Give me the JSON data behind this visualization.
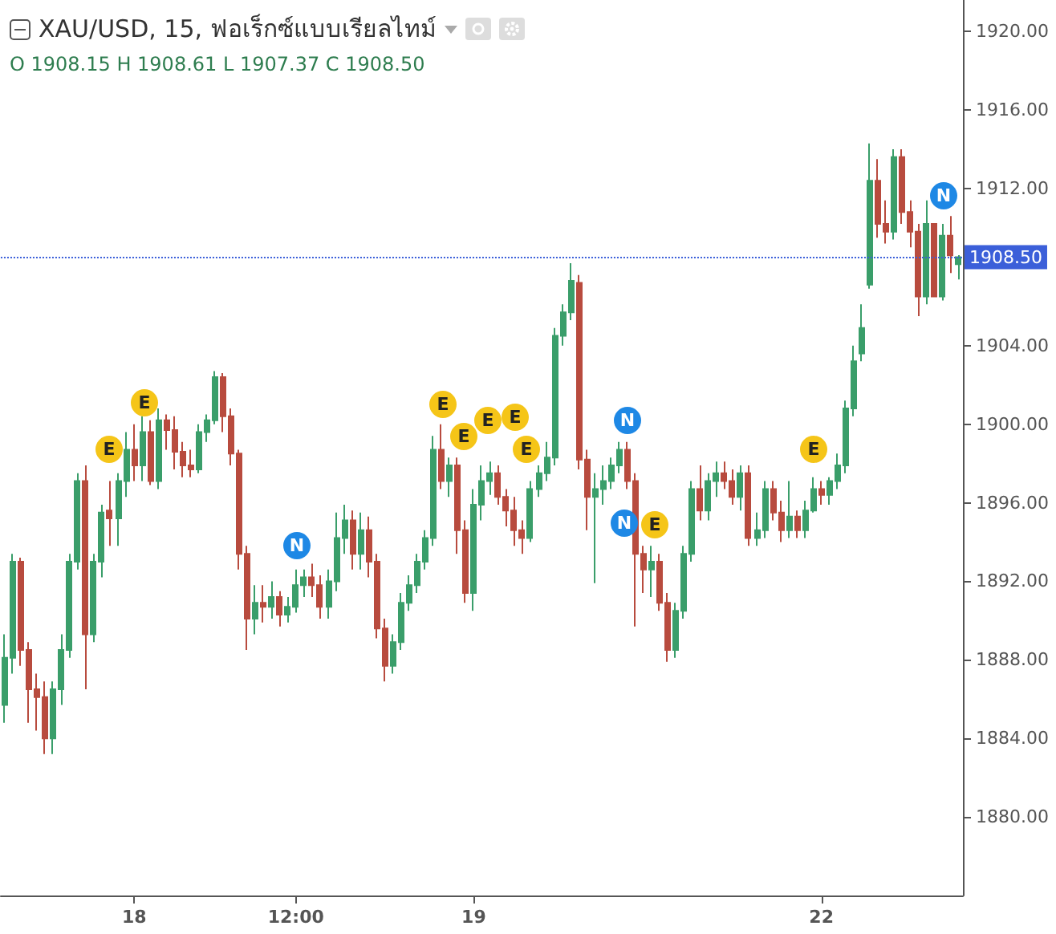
{
  "chart_data": {
    "type": "candlestick",
    "title": "XAU/USD, 15, ฟอเร็กซ์แบบเรียลไทม์",
    "subtitle": "O 1908.15 H 1908.61 L 1907.37 C 1908.50",
    "colors": [
      "#3a9e6a",
      "#3a9e6a",
      "#b84b3e",
      "#b84b3e",
      "#b84b3e",
      "#b84b3e",
      "#3a9e6a",
      "#3a9e6a",
      "#3a9e6a",
      "#3a9e6a",
      "#b84b3e",
      "#3a9e6a",
      "#3a9e6a",
      "#b84b3e",
      "#3a9e6a",
      "#3a9e6a",
      "#b84b3e",
      "#3a9e6a",
      "#b84b3e",
      "#3a9e6a",
      "#b84b3e",
      "#b84b3e",
      "#b84b3e",
      "#b84b3e",
      "#3a9e6a",
      "#3a9e6a",
      "#3a9e6a",
      "#b84b3e",
      "#b84b3e",
      "#b84b3e",
      "#b84b3e",
      "#3a9e6a",
      "#b84b3e",
      "#3a9e6a",
      "#b84b3e",
      "#3a9e6a",
      "#3a9e6a",
      "#3a9e6a",
      "#b84b3e",
      "#b84b3e",
      "#3a9e6a",
      "#3a9e6a",
      "#3a9e6a",
      "#b84b3e",
      "#3a9e6a",
      "#b84b3e",
      "#b84b3e",
      "#b84b3e",
      "#3a9e6a",
      "#3a9e6a",
      "#3a9e6a",
      "#3a9e6a",
      "#3a9e6a",
      "#3a9e6a",
      "#b84b3e",
      "#3a9e6a",
      "#b84b3e",
      "#b84b3e",
      "#3a9e6a",
      "#3a9e6a",
      "#3a9e6a",
      "#b84b3e",
      "#b84b3e",
      "#b84b3e",
      "#b84b3e",
      "#3a9e6a",
      "#3a9e6a",
      "#3a9e6a",
      "#3a9e6a",
      "#3a9e6a",
      "#3a9e6a",
      "#b84b3e",
      "#b84b3e",
      "#3a9e6a",
      "#3a9e6a",
      "#3a9e6a",
      "#3a9e6a",
      "#b84b3e",
      "#b84b3e",
      "#b84b3e",
      "#3a9e6a",
      "#b84b3e",
      "#b84b3e",
      "#3a9e6a",
      "#3a9e6a",
      "#3a9e6a",
      "#b84b3e",
      "#3a9e6a",
      "#3a9e6a",
      "#b84b3e",
      "#b84b3e",
      "#3a9e6a",
      "#b84b3e",
      "#3a9e6a",
      "#3a9e6a",
      "#b84b3e",
      "#b84b3e",
      "#3a9e6a",
      "#b84b3e",
      "#3a9e6a",
      "#3a9e6a",
      "#b84b3e",
      "#3a9e6a",
      "#3a9e6a",
      "#3a9e6a",
      "#3a9e6a",
      "#3a9e6a",
      "#3a9e6a",
      "#b84b3e",
      "#b84b3e",
      "#3a9e6a",
      "#b84b3e",
      "#b84b3e",
      "#b84b3e",
      "#3a9e6a",
      "#b84b3e",
      "#3a9e6a",
      "#b84b3e",
      "#3a9e6a"
    ],
    "categories": [
      null,
      null,
      null,
      null,
      null,
      null,
      null,
      null,
      null,
      null,
      null,
      null,
      null,
      null,
      null,
      null,
      "18",
      null,
      null,
      null,
      null,
      null,
      null,
      null,
      null,
      null,
      null,
      null,
      null,
      null,
      null,
      null,
      null,
      null,
      null,
      null,
      "12:00",
      null,
      null,
      null,
      null,
      null,
      null,
      null,
      null,
      null,
      null,
      null,
      null,
      null,
      null,
      null,
      null,
      null,
      null,
      null,
      null,
      null,
      "19",
      null,
      null,
      null,
      null,
      null,
      null,
      null,
      null,
      null,
      null,
      null,
      null,
      null,
      null,
      null,
      null,
      null,
      null,
      null,
      null,
      null,
      null,
      null,
      null,
      null,
      null,
      null,
      null,
      null,
      null,
      null,
      null,
      null,
      null,
      null,
      null,
      null,
      null,
      null,
      null,
      null,
      null,
      "22",
      null,
      null,
      null,
      null,
      null,
      null,
      null,
      null,
      null,
      null,
      null,
      null,
      null,
      null,
      null,
      null,
      null
    ],
    "ohlc": [
      [
        1885.7,
        1889.3,
        1884.8,
        1888.1
      ],
      [
        1888.1,
        1893.4,
        1887.3,
        1893.0
      ],
      [
        1893.0,
        1893.2,
        1887.7,
        1888.5
      ],
      [
        1888.5,
        1888.9,
        1884.8,
        1886.5
      ],
      [
        1886.5,
        1887.3,
        1884.4,
        1886.1
      ],
      [
        1886.1,
        1886.9,
        1883.2,
        1884.0
      ],
      [
        1884.0,
        1886.9,
        1883.2,
        1886.5
      ],
      [
        1886.5,
        1889.3,
        1885.7,
        1888.5
      ],
      [
        1888.5,
        1893.4,
        1888.1,
        1893.0
      ],
      [
        1893.0,
        1897.5,
        1892.6,
        1897.1
      ],
      [
        1897.1,
        1897.9,
        1886.5,
        1889.3
      ],
      [
        1889.3,
        1893.4,
        1888.9,
        1893.0
      ],
      [
        1893.0,
        1895.9,
        1892.2,
        1895.5
      ],
      [
        1895.6,
        1897.1,
        1893.8,
        1895.2
      ],
      [
        1895.2,
        1897.5,
        1893.8,
        1897.1
      ],
      [
        1897.1,
        1899.6,
        1896.3,
        1898.7
      ],
      [
        1898.7,
        1900.0,
        1897.1,
        1897.9
      ],
      [
        1897.9,
        1900.4,
        1897.1,
        1899.6
      ],
      [
        1899.6,
        1900.2,
        1896.9,
        1897.1
      ],
      [
        1897.1,
        1900.8,
        1896.7,
        1900.2
      ],
      [
        1900.2,
        1900.5,
        1898.7,
        1899.7
      ],
      [
        1899.7,
        1900.4,
        1897.7,
        1898.6
      ],
      [
        1898.6,
        1899.1,
        1897.3,
        1897.9
      ],
      [
        1897.9,
        1898.7,
        1897.3,
        1897.7
      ],
      [
        1897.7,
        1900.0,
        1897.5,
        1899.6
      ],
      [
        1899.6,
        1900.5,
        1899.1,
        1900.2
      ],
      [
        1900.2,
        1902.7,
        1900.0,
        1902.4
      ],
      [
        1902.4,
        1902.6,
        1899.6,
        1900.4
      ],
      [
        1900.4,
        1900.8,
        1897.9,
        1898.5
      ],
      [
        1898.5,
        1898.7,
        1892.6,
        1893.4
      ],
      [
        1893.4,
        1893.8,
        1888.5,
        1890.1
      ],
      [
        1890.1,
        1891.8,
        1889.3,
        1890.9
      ],
      [
        1890.9,
        1891.8,
        1889.9,
        1890.7
      ],
      [
        1890.7,
        1892.0,
        1890.1,
        1891.2
      ],
      [
        1891.2,
        1891.5,
        1889.7,
        1890.3
      ],
      [
        1890.3,
        1891.2,
        1889.9,
        1890.7
      ],
      [
        1890.7,
        1892.6,
        1890.4,
        1891.8
      ],
      [
        1891.8,
        1892.6,
        1891.2,
        1892.2
      ],
      [
        1892.2,
        1892.9,
        1891.2,
        1891.8
      ],
      [
        1891.8,
        1892.3,
        1890.1,
        1890.7
      ],
      [
        1890.7,
        1892.6,
        1890.1,
        1892.0
      ],
      [
        1892.0,
        1895.5,
        1891.5,
        1894.2
      ],
      [
        1894.2,
        1895.9,
        1893.4,
        1895.1
      ],
      [
        1895.1,
        1895.6,
        1892.6,
        1893.4
      ],
      [
        1893.4,
        1895.5,
        1892.6,
        1894.6
      ],
      [
        1894.6,
        1895.3,
        1892.2,
        1893.0
      ],
      [
        1893.0,
        1893.4,
        1889.1,
        1889.6
      ],
      [
        1889.6,
        1890.1,
        1886.9,
        1887.7
      ],
      [
        1887.7,
        1889.3,
        1887.3,
        1888.9
      ],
      [
        1888.9,
        1891.4,
        1888.5,
        1890.9
      ],
      [
        1890.9,
        1892.3,
        1890.5,
        1891.8
      ],
      [
        1891.8,
        1893.4,
        1891.4,
        1893.0
      ],
      [
        1893.0,
        1894.6,
        1892.6,
        1894.2
      ],
      [
        1894.2,
        1899.4,
        1893.8,
        1898.7
      ],
      [
        1898.7,
        1900.0,
        1896.7,
        1897.1
      ],
      [
        1897.1,
        1898.3,
        1896.3,
        1897.9
      ],
      [
        1897.9,
        1898.3,
        1893.4,
        1894.6
      ],
      [
        1894.6,
        1895.1,
        1890.9,
        1891.4
      ],
      [
        1891.4,
        1896.7,
        1890.5,
        1895.9
      ],
      [
        1895.9,
        1897.9,
        1895.1,
        1897.1
      ],
      [
        1897.1,
        1898.1,
        1896.4,
        1897.5
      ],
      [
        1897.5,
        1897.9,
        1895.9,
        1896.3
      ],
      [
        1896.3,
        1896.7,
        1894.8,
        1895.6
      ],
      [
        1895.6,
        1896.3,
        1893.8,
        1894.6
      ],
      [
        1894.6,
        1895.1,
        1893.4,
        1894.2
      ],
      [
        1894.2,
        1897.1,
        1894.0,
        1896.7
      ],
      [
        1896.7,
        1897.9,
        1896.3,
        1897.5
      ],
      [
        1897.5,
        1899.1,
        1897.1,
        1898.3
      ],
      [
        1898.3,
        1904.9,
        1897.9,
        1904.5
      ],
      [
        1904.5,
        1906.1,
        1904.0,
        1905.7
      ],
      [
        1905.7,
        1908.2,
        1905.3,
        1907.3
      ],
      [
        1907.2,
        1907.6,
        1897.7,
        1898.2
      ],
      [
        1898.2,
        1898.7,
        1894.6,
        1896.3
      ],
      [
        1896.3,
        1897.5,
        1891.9,
        1896.7
      ],
      [
        1896.7,
        1897.9,
        1895.9,
        1897.1
      ],
      [
        1897.1,
        1898.3,
        1896.7,
        1897.9
      ],
      [
        1897.9,
        1899.1,
        1897.5,
        1898.7
      ],
      [
        1898.7,
        1899.1,
        1896.7,
        1897.1
      ],
      [
        1897.1,
        1897.5,
        1889.7,
        1893.4
      ],
      [
        1893.4,
        1893.8,
        1891.4,
        1892.6
      ],
      [
        1892.6,
        1893.8,
        1891.2,
        1893.0
      ],
      [
        1893.0,
        1893.4,
        1890.5,
        1890.9
      ],
      [
        1890.9,
        1891.4,
        1887.9,
        1888.5
      ],
      [
        1888.5,
        1890.9,
        1888.1,
        1890.5
      ],
      [
        1890.5,
        1893.8,
        1890.1,
        1893.4
      ],
      [
        1893.4,
        1897.1,
        1893.0,
        1896.7
      ],
      [
        1896.7,
        1897.9,
        1895.1,
        1895.6
      ],
      [
        1895.6,
        1897.5,
        1895.1,
        1897.1
      ],
      [
        1897.1,
        1898.1,
        1896.3,
        1897.5
      ],
      [
        1897.5,
        1898.1,
        1896.7,
        1897.1
      ],
      [
        1897.1,
        1897.7,
        1895.9,
        1896.3
      ],
      [
        1896.3,
        1897.9,
        1895.6,
        1897.5
      ],
      [
        1897.5,
        1897.9,
        1893.8,
        1894.2
      ],
      [
        1894.2,
        1895.5,
        1893.8,
        1894.6
      ],
      [
        1894.6,
        1897.1,
        1894.2,
        1896.7
      ],
      [
        1896.7,
        1897.1,
        1895.1,
        1895.5
      ],
      [
        1895.5,
        1896.1,
        1894.0,
        1894.6
      ],
      [
        1894.6,
        1897.1,
        1894.2,
        1895.3
      ],
      [
        1895.3,
        1895.6,
        1894.2,
        1894.6
      ],
      [
        1894.6,
        1896.1,
        1894.2,
        1895.6
      ],
      [
        1895.6,
        1897.3,
        1895.5,
        1896.7
      ],
      [
        1896.7,
        1897.1,
        1895.9,
        1896.4
      ],
      [
        1896.4,
        1897.3,
        1895.9,
        1897.1
      ],
      [
        1897.1,
        1898.5,
        1896.7,
        1897.9
      ],
      [
        1897.9,
        1901.2,
        1897.5,
        1900.8
      ],
      [
        1900.8,
        1904.0,
        1900.4,
        1903.2
      ],
      [
        1903.6,
        1906.1,
        1903.2,
        1904.9
      ],
      [
        1907.1,
        1914.3,
        1906.9,
        1912.4
      ],
      [
        1912.4,
        1913.5,
        1909.5,
        1910.2
      ],
      [
        1910.2,
        1911.4,
        1909.2,
        1909.8
      ],
      [
        1909.8,
        1914.0,
        1909.4,
        1913.6
      ],
      [
        1913.6,
        1914.0,
        1910.2,
        1910.8
      ],
      [
        1910.8,
        1911.4,
        1909.0,
        1909.8
      ],
      [
        1909.8,
        1910.2,
        1905.5,
        1906.5
      ],
      [
        1906.5,
        1911.4,
        1906.1,
        1910.2
      ],
      [
        1910.2,
        1910.2,
        1906.5,
        1906.5
      ],
      [
        1906.5,
        1910.2,
        1906.3,
        1909.6
      ],
      [
        1909.6,
        1910.6,
        1907.7,
        1908.6
      ],
      [
        1908.15,
        1908.61,
        1907.37,
        1908.5
      ]
    ],
    "ylim": [
      1876,
      1921.6
    ],
    "yticks": [
      {
        "value": 1880,
        "label": "1880.00"
      },
      {
        "value": 1884,
        "label": "1884.00"
      },
      {
        "value": 1888,
        "label": "1888.00"
      },
      {
        "value": 1892,
        "label": "1892.00"
      },
      {
        "value": 1896,
        "label": "1896.00"
      },
      {
        "value": 1900,
        "label": "1900.00"
      },
      {
        "value": 1904,
        "label": "1904.00"
      },
      {
        "value": 1908,
        "label": null
      },
      {
        "value": 1912,
        "label": "1912.00"
      },
      {
        "value": 1916,
        "label": "1916.00"
      },
      {
        "value": 1920,
        "label": "1920.00"
      }
    ],
    "ref_lines": [
      {
        "axis": "y",
        "value": 1908.5,
        "label": "1908.50",
        "color": "#3b5fd9",
        "line_style": "dotted"
      }
    ],
    "annotations": [
      "E",
      "E",
      "N",
      "E",
      "E",
      "E",
      "E",
      "E",
      "N",
      "N",
      "E",
      "E",
      "N"
    ],
    "grid": false
  }
}
